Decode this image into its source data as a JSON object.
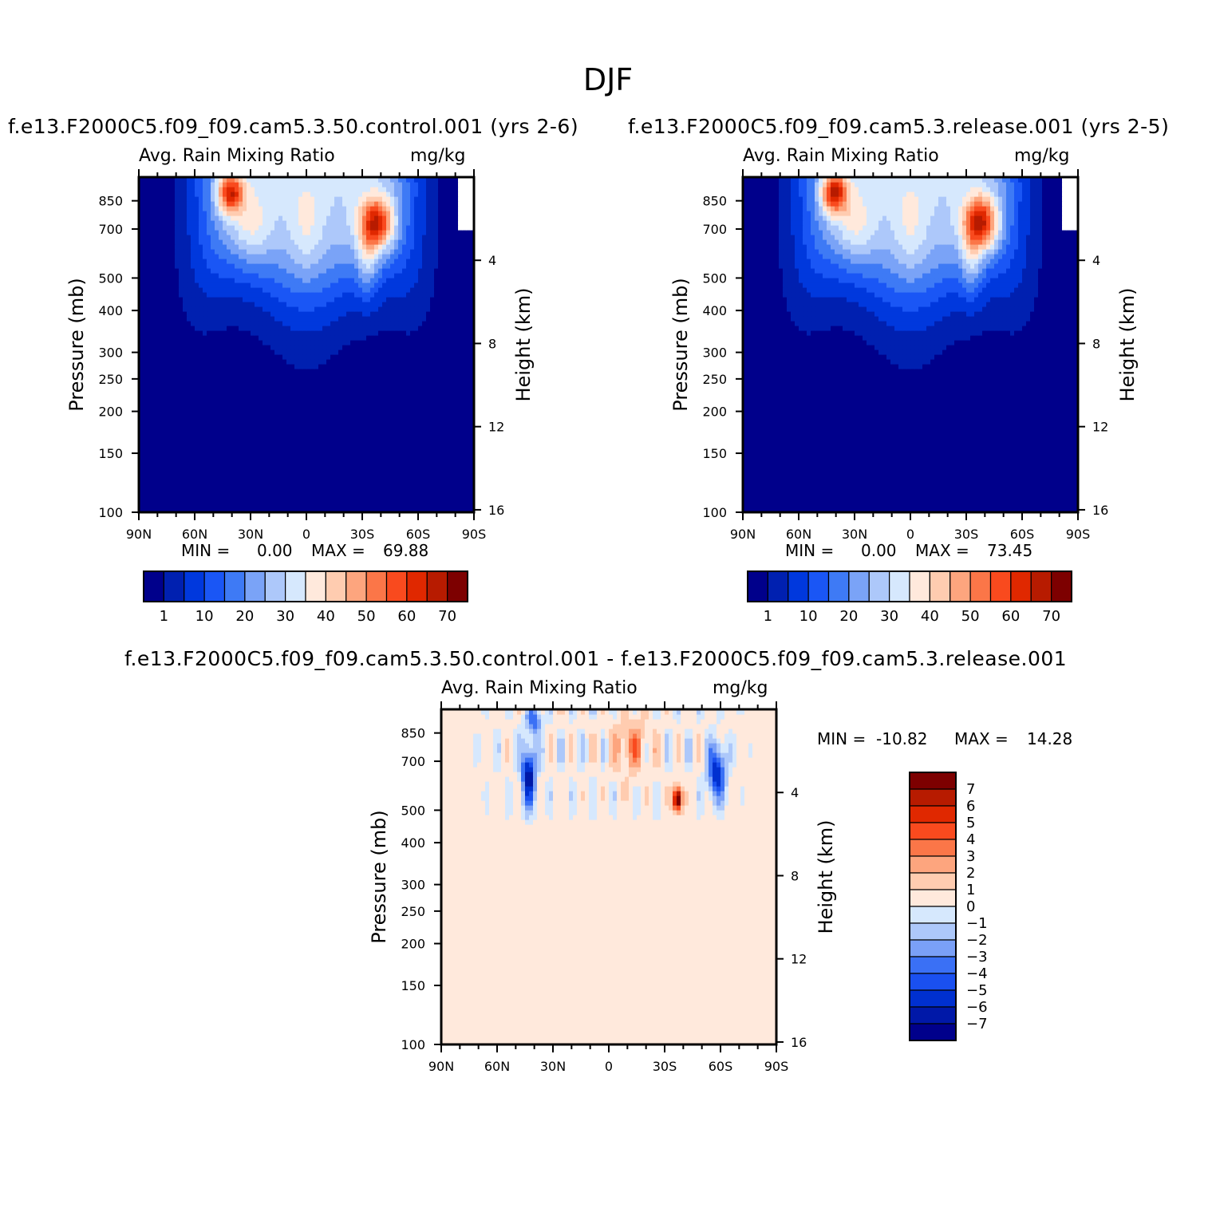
{
  "figure": {
    "title": "DJF"
  },
  "colors": {
    "abs_levels": [
      "#00008b",
      "#0020b0",
      "#0038dd",
      "#1a56f5",
      "#3e7af5",
      "#7aa3f7",
      "#adc8fa",
      "#d6e8fd",
      "#ffe9dc",
      "#ffccb0",
      "#fda57e",
      "#fb7648",
      "#f94a1e",
      "#e02800",
      "#b71b00",
      "#7d0000"
    ],
    "diff_levels": [
      "#00008b",
      "#0018a8",
      "#0030d0",
      "#1a50f0",
      "#3a70f5",
      "#7aa0f7",
      "#adc8fa",
      "#d6e8fd",
      "#ffe9dc",
      "#ffccb0",
      "#fda57e",
      "#fb7648",
      "#f94a1e",
      "#e02800",
      "#b71b00",
      "#7d0000"
    ]
  },
  "chart_data": [
    {
      "type": "heatmap",
      "panel": "control",
      "title": "f.e13.F2000C5.f09_f09.cam5.3.50.control.001 (yrs 2-6)",
      "subtitle_left": "Avg. Rain Mixing Ratio",
      "subtitle_right": "mg/kg",
      "xlabel": "",
      "ylabel": "Pressure (mb)",
      "ylabel_right": "Height (km)",
      "x_ticks": [
        "90N",
        "60N",
        "30N",
        "0",
        "30S",
        "60S",
        "90S"
      ],
      "y_ticks": [
        "100",
        "150",
        "200",
        "250",
        "300",
        "400",
        "500",
        "700",
        "850"
      ],
      "y_ticks_right": [
        "16",
        "12",
        "8",
        "4"
      ],
      "min_label": "MIN =",
      "min_value": "0.00",
      "max_label": "MAX =",
      "max_value": "69.88",
      "colorbar_labels": [
        "1",
        "10",
        "20",
        "30",
        "40",
        "50",
        "60",
        "70"
      ],
      "peaks": [
        {
          "lat": -38,
          "p": 730,
          "value": 69.88
        },
        {
          "lat": 41,
          "p": 870,
          "value": 60
        }
      ]
    },
    {
      "type": "heatmap",
      "panel": "release",
      "title": "f.e13.F2000C5.f09_f09.cam5.3.release.001 (yrs 2-5)",
      "subtitle_left": "Avg. Rain Mixing Ratio",
      "subtitle_right": "mg/kg",
      "xlabel": "",
      "ylabel": "Pressure (mb)",
      "ylabel_right": "Height (km)",
      "x_ticks": [
        "90N",
        "60N",
        "30N",
        "0",
        "30S",
        "60S",
        "90S"
      ],
      "y_ticks": [
        "100",
        "150",
        "200",
        "250",
        "300",
        "400",
        "500",
        "700",
        "850"
      ],
      "y_ticks_right": [
        "16",
        "12",
        "8",
        "4"
      ],
      "min_label": "MIN =",
      "min_value": "0.00",
      "max_label": "MAX =",
      "max_value": "73.45",
      "colorbar_labels": [
        "1",
        "10",
        "20",
        "30",
        "40",
        "50",
        "60",
        "70"
      ],
      "peaks": [
        {
          "lat": -38,
          "p": 730,
          "value": 73.45
        },
        {
          "lat": 41,
          "p": 870,
          "value": 62
        }
      ]
    },
    {
      "type": "heatmap",
      "panel": "difference",
      "title": "f.e13.F2000C5.f09_f09.cam5.3.50.control.001 - f.e13.F2000C5.f09_f09.cam5.3.release.001",
      "subtitle_left": "Avg. Rain Mixing Ratio",
      "subtitle_right": "mg/kg",
      "xlabel": "",
      "ylabel": "Pressure (mb)",
      "ylabel_right": "Height (km)",
      "x_ticks": [
        "90N",
        "60N",
        "30N",
        "0",
        "30S",
        "60S",
        "90S"
      ],
      "y_ticks": [
        "100",
        "150",
        "200",
        "250",
        "300",
        "400",
        "500",
        "700",
        "850"
      ],
      "y_ticks_right": [
        "16",
        "12",
        "8",
        "4"
      ],
      "min_label": "MIN =",
      "min_value": "-10.82",
      "max_label": "MAX =",
      "max_value": "14.28",
      "colorbar_labels": [
        "7",
        "6",
        "5",
        "4",
        "3",
        "2",
        "1",
        "0",
        "-1",
        "-2",
        "-3",
        "-4",
        "-5",
        "-6",
        "-7"
      ],
      "peaks": [
        {
          "lat": -37,
          "p": 540,
          "value": 14.28
        },
        {
          "lat": 43,
          "p": 620,
          "value": -10.82
        }
      ]
    }
  ]
}
